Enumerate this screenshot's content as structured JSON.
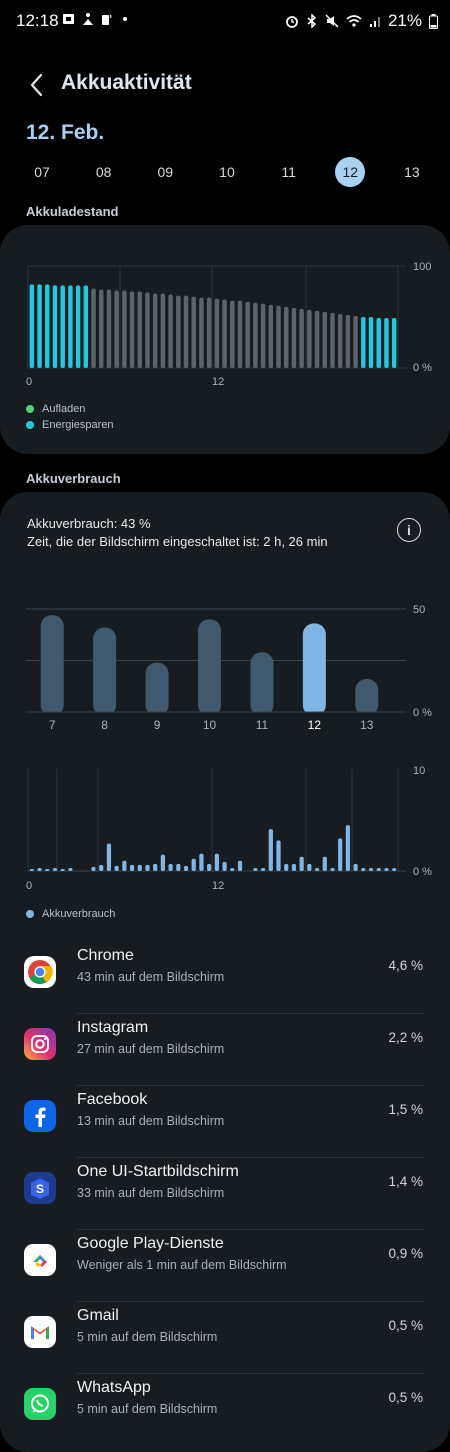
{
  "status": {
    "time": "12:18",
    "battery_text": "21%"
  },
  "header": {
    "title": "Akkuaktivität",
    "date": "12. Feb."
  },
  "dates": [
    "07",
    "08",
    "09",
    "10",
    "11",
    "12",
    "13"
  ],
  "selected_date": "12",
  "charge_section": {
    "label": "Akkuladestand",
    "axis_top": "100",
    "axis_bottom": "0 %",
    "x_labels": [
      "0",
      "12"
    ],
    "legend": [
      {
        "label": "Aufladen",
        "color": "#4fd07a"
      },
      {
        "label": "Energiesparen",
        "color": "#22c8df"
      }
    ]
  },
  "usage_section": {
    "label": "Akkuverbrauch",
    "usage_text": "Akkuverbrauch: 43 %",
    "screen_text": "Zeit, die der Bildschirm eingeschaltet ist: 2 h, 26 min",
    "daily_axis_top": "50",
    "daily_axis_bottom": "0 %",
    "hourly_axis_top": "10",
    "hourly_axis_bottom": "0 %",
    "hourly_x_labels": [
      "0",
      "12"
    ],
    "legend_label": "Akkuverbrauch",
    "legend_color": "#7fb6e6"
  },
  "chart_data": [
    {
      "type": "bar",
      "title": "Akkuladestand",
      "ylim": [
        0,
        100
      ],
      "x": [
        0,
        1,
        2,
        3,
        4,
        5,
        6,
        7,
        8,
        9,
        10,
        11,
        12,
        13,
        14,
        15,
        16,
        17,
        18,
        19,
        20,
        21,
        22,
        23,
        24,
        25,
        26,
        27,
        28,
        29,
        30,
        31,
        32,
        33,
        34,
        35,
        36,
        37,
        38,
        39,
        40,
        41,
        42,
        43,
        44,
        45,
        46,
        47
      ],
      "values": [
        82,
        82,
        82,
        81,
        81,
        81,
        81,
        81,
        78,
        77,
        77,
        76,
        76,
        75,
        75,
        74,
        73,
        73,
        72,
        71,
        71,
        70,
        69,
        69,
        68,
        67,
        66,
        66,
        65,
        64,
        63,
        62,
        61,
        60,
        59,
        58,
        57,
        56,
        55,
        54,
        53,
        52,
        51,
        50,
        50,
        49,
        49,
        49
      ],
      "energiesparen": [
        1,
        1,
        1,
        1,
        1,
        1,
        1,
        1,
        0,
        0,
        0,
        0,
        0,
        0,
        0,
        0,
        0,
        0,
        0,
        0,
        0,
        0,
        0,
        0,
        0,
        0,
        0,
        0,
        0,
        0,
        0,
        0,
        0,
        0,
        0,
        0,
        0,
        0,
        0,
        0,
        0,
        0,
        0,
        1,
        1,
        1,
        1,
        1
      ],
      "x_tick_labels": [
        "0",
        "12"
      ],
      "legend": [
        "Aufladen",
        "Energiesparen"
      ]
    },
    {
      "type": "bar",
      "title": "Akkuverbrauch",
      "categories": [
        "7",
        "8",
        "9",
        "10",
        "11",
        "12",
        "13"
      ],
      "values": [
        47,
        41,
        24,
        45,
        29,
        43,
        16
      ],
      "selected": "12",
      "ylim": [
        0,
        50
      ]
    },
    {
      "type": "bar",
      "title": "Akkuverbrauch",
      "ylim": [
        0,
        10
      ],
      "x": [
        0,
        1,
        2,
        3,
        4,
        5,
        6,
        7,
        8,
        9,
        10,
        11,
        12,
        13,
        14,
        15,
        16,
        17,
        18,
        19,
        20,
        21,
        22,
        23,
        24,
        25,
        26,
        27,
        28,
        29,
        30,
        31,
        32,
        33,
        34,
        35,
        36,
        37,
        38,
        39,
        40,
        41,
        42,
        43,
        44,
        45,
        46,
        47
      ],
      "values": [
        0.2,
        0.3,
        0.2,
        0.3,
        0.2,
        0.3,
        0,
        0,
        0.4,
        0.6,
        2.7,
        0.5,
        1,
        0.6,
        0.6,
        0.6,
        0.7,
        1.6,
        0.7,
        0.7,
        0.5,
        1.2,
        1.7,
        0.7,
        1.7,
        0.9,
        0.3,
        1,
        0,
        0.3,
        0.3,
        4.1,
        3,
        0.7,
        0.7,
        1.4,
        0.7,
        0.3,
        1.4,
        0.3,
        3.2,
        4.5,
        0.7,
        0.3,
        0.3,
        0.3,
        0.3,
        0.3
      ],
      "x_tick_labels": [
        "0",
        "12"
      ],
      "legend": [
        "Akkuverbrauch"
      ]
    }
  ],
  "apps": [
    {
      "name": "Chrome",
      "sub": "43 min auf dem Bildschirm",
      "pct": "4,6 %",
      "icon": "chrome-icon"
    },
    {
      "name": "Instagram",
      "sub": "27 min auf dem Bildschirm",
      "pct": "2,2 %",
      "icon": "instagram-icon"
    },
    {
      "name": "Facebook",
      "sub": "13 min auf dem Bildschirm",
      "pct": "1,5 %",
      "icon": "facebook-icon"
    },
    {
      "name": "One UI-Startbildschirm",
      "sub": "33 min auf dem Bildschirm",
      "pct": "1,4 %",
      "icon": "one-ui-home-icon"
    },
    {
      "name": "Google Play-Dienste",
      "sub": "Weniger als 1 min auf dem Bildschirm",
      "pct": "0,9 %",
      "icon": "google-play-services-icon"
    },
    {
      "name": "Gmail",
      "sub": "5 min auf dem Bildschirm",
      "pct": "0,5 %",
      "icon": "gmail-icon"
    },
    {
      "name": "WhatsApp",
      "sub": "5 min auf dem Bildschirm",
      "pct": "0,5 %",
      "icon": "whatsapp-icon"
    }
  ]
}
